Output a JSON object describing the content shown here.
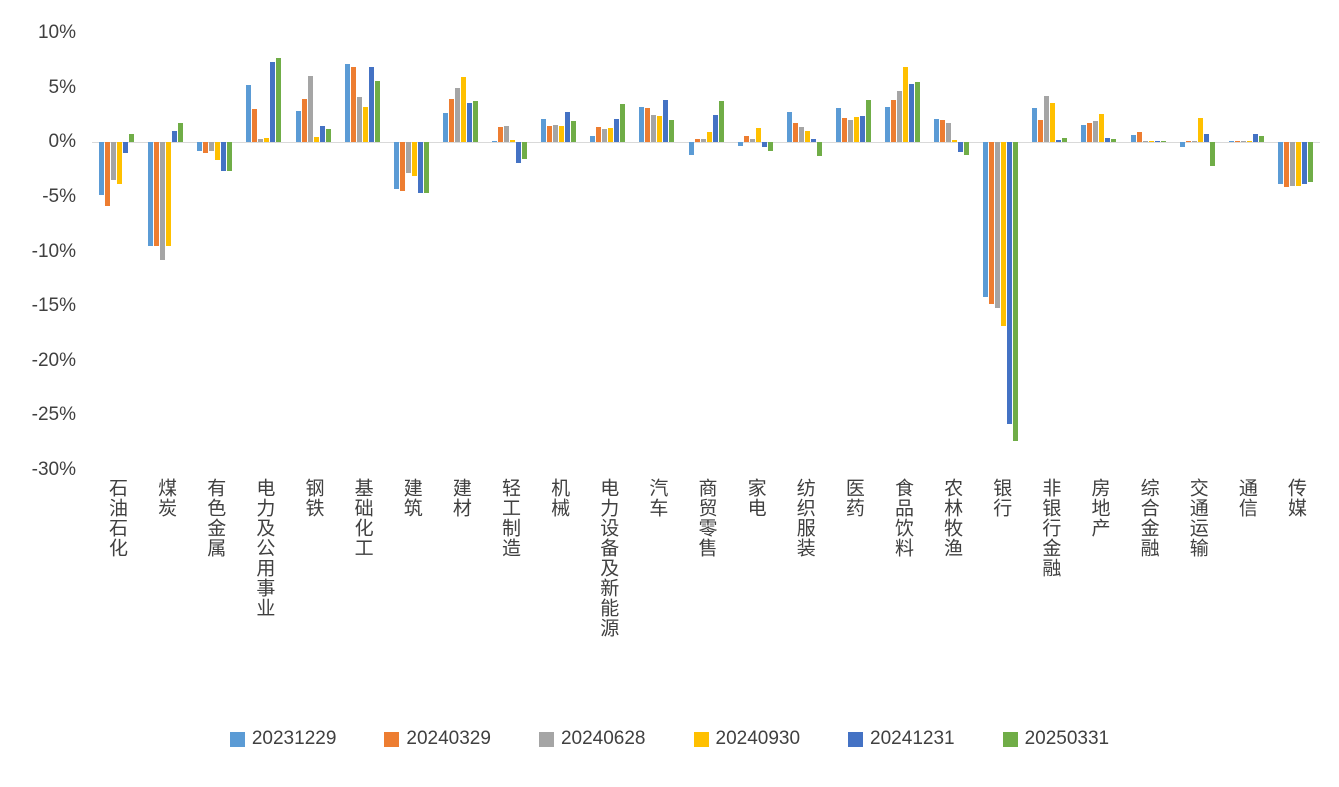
{
  "chart_data": {
    "type": "bar",
    "title": "",
    "xlabel": "",
    "ylabel": "",
    "ylim": [
      -30,
      10
    ],
    "y_ticks": [
      10,
      5,
      0,
      -5,
      -10,
      -15,
      -20,
      -25,
      -30
    ],
    "y_tick_suffix": "%",
    "grid": false,
    "legend_position": "bottom",
    "categories": [
      "石油石化",
      "煤炭",
      "有色金属",
      "电力及公用事业",
      "钢铁",
      "基础化工",
      "建筑",
      "建材",
      "轻工制造",
      "机械",
      "电力设备及新能源",
      "汽车",
      "商贸零售",
      "家电",
      "纺织服装",
      "医药",
      "食品饮料",
      "农林牧渔",
      "银行",
      "非银行金融",
      "房地产",
      "综合金融",
      "交通运输",
      "通信",
      "传媒"
    ],
    "series": [
      {
        "name": "20231229",
        "color": "#5B9BD5",
        "values": [
          -4.8,
          -9.5,
          -0.8,
          5.2,
          2.9,
          7.2,
          -4.3,
          2.7,
          0.1,
          2.1,
          0.6,
          3.2,
          -1.2,
          -0.3,
          2.8,
          3.1,
          3.2,
          2.1,
          -14.2,
          3.1,
          1.6,
          0.7,
          -0.4,
          0.1,
          -3.8
        ]
      },
      {
        "name": "20240329",
        "color": "#ED7D31",
        "values": [
          -5.8,
          -9.5,
          -1.0,
          3.0,
          4.0,
          6.9,
          -4.5,
          4.0,
          1.4,
          1.5,
          1.4,
          3.1,
          0.3,
          0.6,
          1.8,
          2.2,
          3.9,
          2.0,
          -14.8,
          2.0,
          1.8,
          0.9,
          0.1,
          0.1,
          -4.1
        ]
      },
      {
        "name": "20240628",
        "color": "#A5A5A5",
        "values": [
          -3.5,
          -10.8,
          -0.8,
          0.3,
          6.1,
          4.1,
          -2.8,
          5.0,
          1.5,
          1.6,
          1.2,
          2.5,
          0.3,
          0.3,
          1.4,
          2.0,
          4.7,
          1.8,
          -15.2,
          4.2,
          1.9,
          0.1,
          0.1,
          0.1,
          -4.0
        ]
      },
      {
        "name": "20240930",
        "color": "#FFC000",
        "values": [
          -3.8,
          -9.5,
          -1.6,
          0.4,
          0.5,
          3.2,
          -3.1,
          6.0,
          0.2,
          1.5,
          1.3,
          2.4,
          0.9,
          1.3,
          1.0,
          2.3,
          6.9,
          0.2,
          -16.8,
          3.6,
          2.6,
          0.1,
          2.2,
          0.1,
          -4.0
        ]
      },
      {
        "name": "20241231",
        "color": "#4472C4",
        "values": [
          -1.0,
          1.0,
          -2.6,
          7.3,
          1.5,
          6.9,
          -4.6,
          3.6,
          -1.9,
          2.8,
          2.1,
          3.9,
          2.5,
          -0.4,
          0.3,
          2.4,
          5.3,
          -0.9,
          -25.8,
          0.2,
          0.4,
          0.1,
          0.8,
          0.8,
          -3.8
        ]
      },
      {
        "name": "20250331",
        "color": "#70AD47",
        "values": [
          0.8,
          1.8,
          -2.6,
          7.7,
          1.2,
          5.6,
          -4.6,
          3.8,
          -1.5,
          1.9,
          3.5,
          2.0,
          3.8,
          -0.8,
          -1.3,
          3.9,
          5.5,
          -1.2,
          -27.3,
          0.4,
          0.3,
          0.1,
          -2.2,
          0.6,
          -3.6
        ]
      }
    ],
    "colors": {
      "axis_text": "#404040",
      "zero_line": "#d9d9d9",
      "background": "#ffffff"
    }
  }
}
